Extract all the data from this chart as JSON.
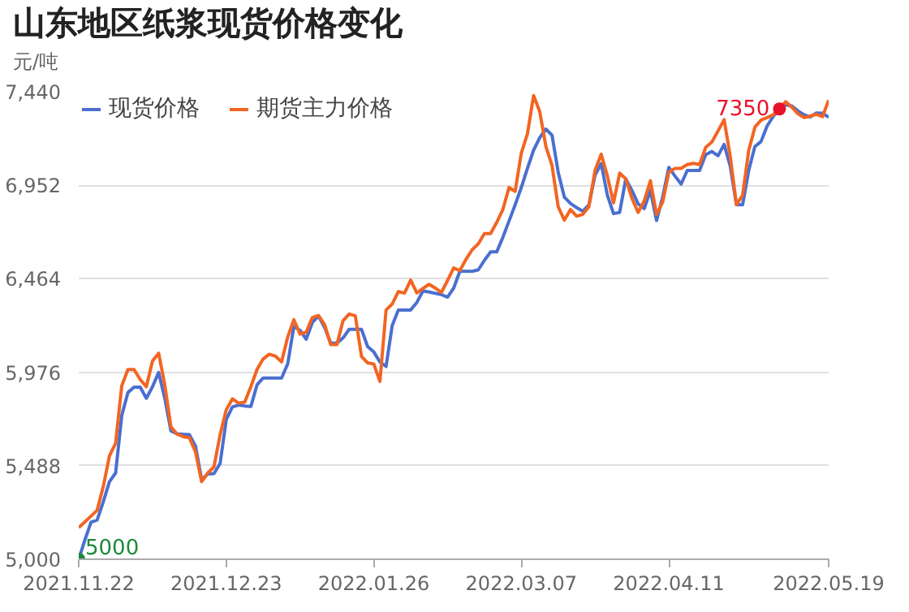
{
  "chart_data": {
    "type": "line",
    "title": "山东地区纸浆现货价格变化",
    "ylabel": "元/吨",
    "categories": [
      "2021.11.22",
      null,
      null,
      null,
      null,
      null,
      null,
      null,
      null,
      null,
      null,
      null,
      null,
      null,
      null,
      null,
      null,
      null,
      null,
      null,
      null,
      null,
      null,
      null,
      "2021.12.23",
      null,
      null,
      null,
      null,
      null,
      null,
      null,
      null,
      null,
      null,
      null,
      null,
      null,
      null,
      null,
      null,
      null,
      null,
      null,
      null,
      null,
      null,
      null,
      "2022.01.26",
      null,
      null,
      null,
      null,
      null,
      null,
      null,
      null,
      null,
      null,
      null,
      null,
      null,
      null,
      null,
      null,
      null,
      null,
      null,
      null,
      null,
      null,
      null,
      "2022.03.07",
      null,
      null,
      null,
      null,
      null,
      null,
      null,
      null,
      null,
      null,
      null,
      null,
      null,
      null,
      null,
      null,
      null,
      null,
      null,
      null,
      null,
      null,
      null,
      "2022.04.11",
      null,
      null,
      null,
      null,
      null,
      null,
      null,
      null,
      null,
      null,
      null,
      null,
      null,
      null,
      null,
      null,
      null,
      null,
      null,
      null,
      null,
      null,
      null,
      null,
      null,
      "2022.05.19"
    ],
    "ylim": [
      5000,
      7440
    ],
    "yticks": [
      {
        "value": 5000,
        "label": "5,000"
      },
      {
        "value": 5488,
        "label": "5,488"
      },
      {
        "value": 5976,
        "label": "5,976"
      },
      {
        "value": 6464,
        "label": "6,464"
      },
      {
        "value": 6952,
        "label": "6,952"
      },
      {
        "value": 7440,
        "label": "7,440"
      }
    ],
    "grid": "y",
    "legend": "top left",
    "line_style": "solid",
    "series": [
      {
        "name": "现货价格",
        "color": "#4a6fd0",
        "value_labels": [
          "5000",
          null,
          null,
          null,
          null,
          null,
          null,
          null,
          null,
          null,
          null,
          null,
          null,
          null,
          null,
          null,
          null,
          null,
          null,
          null,
          null,
          null,
          null,
          null,
          null,
          null,
          null,
          null,
          null,
          null,
          null,
          null,
          null,
          null,
          null,
          null,
          null,
          null,
          null,
          null,
          null,
          null,
          null,
          null,
          null,
          null,
          null,
          null,
          null,
          null,
          null,
          null,
          null,
          null,
          null,
          null,
          null,
          null,
          null,
          null,
          null,
          null,
          null,
          null,
          null,
          null,
          null,
          null,
          null,
          null,
          null,
          null,
          null,
          null,
          null,
          null,
          null,
          null,
          null,
          null,
          null,
          null,
          null,
          null,
          null,
          null,
          null,
          null,
          null,
          null,
          null,
          null,
          null,
          null,
          null,
          null,
          null,
          null,
          null,
          null,
          null,
          null,
          null,
          null,
          null,
          null,
          null,
          null,
          null,
          null,
          null,
          null,
          null,
          null,
          null,
          null,
          null,
          null,
          null,
          null,
          null,
          null,
          null
        ],
        "values": [
          5000,
          5100,
          5193,
          5205,
          5300,
          5405,
          5450,
          5750,
          5870,
          5898,
          5898,
          5840,
          5900,
          5975,
          5840,
          5670,
          5655,
          5652,
          5650,
          5590,
          5415,
          5445,
          5447,
          5500,
          5729,
          5795,
          5805,
          5800,
          5797,
          5910,
          5946,
          5946,
          5946,
          5946,
          6020,
          6215,
          6195,
          6148,
          6235,
          6270,
          6210,
          6128,
          6128,
          6155,
          6200,
          6200,
          6200,
          6110,
          6082,
          6030,
          6006,
          6220,
          6301,
          6301,
          6301,
          6340,
          6400,
          6395,
          6388,
          6381,
          6368,
          6415,
          6503,
          6503,
          6503,
          6510,
          6560,
          6604,
          6604,
          6680,
          6765,
          6850,
          6940,
          7040,
          7135,
          7200,
          7245,
          7213,
          7020,
          6890,
          6857,
          6835,
          6816,
          6850,
          7005,
          7065,
          6900,
          6804,
          6810,
          6985,
          6925,
          6855,
          6830,
          6925,
          6768,
          6890,
          7045,
          7000,
          6958,
          7029,
          7029,
          7029,
          7112,
          7128,
          7106,
          7165,
          7050,
          6850,
          6850,
          7030,
          7154,
          7180,
          7262,
          7312,
          7347,
          7371,
          7366,
          7340,
          7320,
          7308,
          7329,
          7328,
          7307
        ]
      },
      {
        "name": "期货主力价格",
        "color": "#f26522",
        "value_labels": [
          null,
          null,
          null,
          null,
          null,
          null,
          null,
          null,
          null,
          null,
          null,
          null,
          null,
          null,
          null,
          null,
          null,
          null,
          null,
          null,
          null,
          null,
          null,
          null,
          null,
          null,
          null,
          null,
          null,
          null,
          null,
          null,
          null,
          null,
          null,
          null,
          null,
          null,
          null,
          null,
          null,
          null,
          null,
          null,
          null,
          null,
          null,
          null,
          null,
          null,
          null,
          null,
          null,
          null,
          null,
          null,
          null,
          null,
          null,
          null,
          null,
          null,
          null,
          null,
          null,
          null,
          null,
          null,
          null,
          null,
          null,
          null,
          null,
          null,
          null,
          null,
          null,
          null,
          null,
          null,
          null,
          null,
          null,
          null,
          null,
          null,
          null,
          null,
          null,
          null,
          null,
          null,
          null,
          null,
          null,
          null,
          null,
          null,
          null,
          null,
          null,
          null,
          null,
          null,
          null,
          null,
          null,
          null,
          null,
          null,
          null,
          null,
          null,
          null,
          "7350",
          null,
          null,
          null,
          null,
          null,
          null,
          null,
          null
        ],
        "values": [
          5165,
          5195,
          5225,
          5256,
          5380,
          5540,
          5605,
          5905,
          5990,
          5990,
          5938,
          5900,
          6035,
          6075,
          5910,
          5690,
          5653,
          5640,
          5634,
          5560,
          5405,
          5450,
          5482,
          5650,
          5780,
          5837,
          5815,
          5820,
          5900,
          5990,
          6045,
          6070,
          6060,
          6030,
          6160,
          6250,
          6175,
          6185,
          6261,
          6272,
          6225,
          6120,
          6120,
          6245,
          6280,
          6270,
          6059,
          6025,
          6019,
          5928,
          6301,
          6332,
          6397,
          6389,
          6457,
          6390,
          6413,
          6435,
          6415,
          6392,
          6455,
          6520,
          6506,
          6565,
          6615,
          6646,
          6700,
          6700,
          6758,
          6825,
          6940,
          6920,
          7120,
          7220,
          7420,
          7336,
          7155,
          7055,
          6840,
          6770,
          6825,
          6790,
          6800,
          6840,
          7030,
          7114,
          7000,
          6860,
          7015,
          6985,
          6884,
          6810,
          6870,
          6975,
          6800,
          6864,
          7020,
          7040,
          7040,
          7060,
          7066,
          7060,
          7150,
          7177,
          7235,
          7294,
          7100,
          6850,
          6900,
          7134,
          7255,
          7292,
          7305,
          7320,
          7350,
          7388,
          7360,
          7325,
          7305,
          7313,
          7322,
          7310,
          7396
        ]
      }
    ]
  }
}
